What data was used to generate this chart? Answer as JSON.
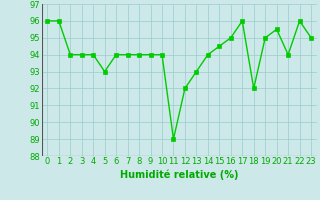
{
  "x": [
    0,
    1,
    2,
    3,
    4,
    5,
    6,
    7,
    8,
    9,
    10,
    11,
    12,
    13,
    14,
    15,
    16,
    17,
    18,
    19,
    20,
    21,
    22,
    23
  ],
  "y": [
    96,
    96,
    94,
    94,
    94,
    93,
    94,
    94,
    94,
    94,
    94,
    89,
    92,
    93,
    94,
    94.5,
    95,
    96,
    92,
    95,
    95.5,
    94,
    96,
    95
  ],
  "line_color": "#00cc00",
  "marker_color": "#00cc00",
  "bg_color": "#cce8e8",
  "grid_color": "#99cccc",
  "xlabel": "Humidité relative (%)",
  "ylim": [
    88,
    97
  ],
  "xlim": [
    -0.5,
    23.5
  ],
  "yticks": [
    88,
    89,
    90,
    91,
    92,
    93,
    94,
    95,
    96,
    97
  ],
  "xticks": [
    0,
    1,
    2,
    3,
    4,
    5,
    6,
    7,
    8,
    9,
    10,
    11,
    12,
    13,
    14,
    15,
    16,
    17,
    18,
    19,
    20,
    21,
    22,
    23
  ],
  "xlabel_fontsize": 7,
  "tick_fontsize": 6,
  "line_width": 1.0,
  "marker_size": 2.5
}
